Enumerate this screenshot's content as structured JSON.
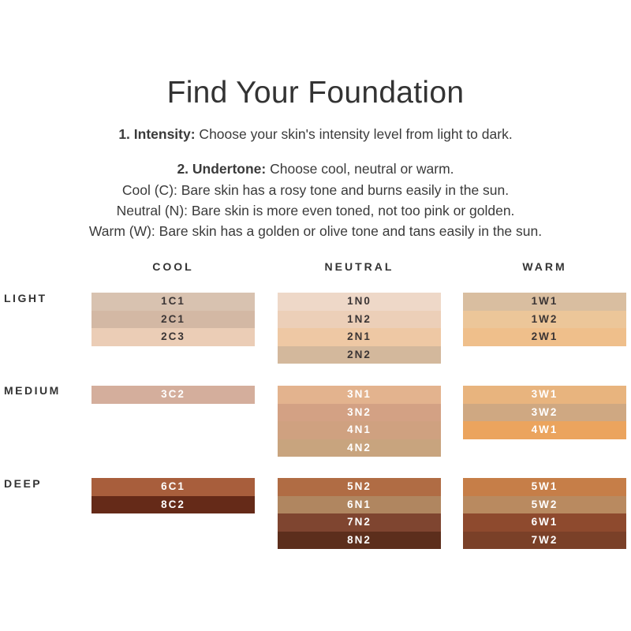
{
  "title": "Find Your Foundation",
  "step1": {
    "label": "1. Intensity:",
    "text": " Choose your skin's intensity level from light to dark."
  },
  "step2": {
    "label": "2. Undertone:",
    "text": " Choose cool, neutral or warm."
  },
  "undertones": [
    "Cool (C): Bare skin has a rosy tone and burns easily in the sun.",
    "Neutral (N): Bare skin is more even toned, not too pink or golden.",
    "Warm (W): Bare skin has a golden or olive tone and tans easily in the sun."
  ],
  "columns": [
    "COOL",
    "NEUTRAL",
    "WARM"
  ],
  "rows": [
    "LIGHT",
    "MEDIUM",
    "DEEP"
  ],
  "shades": {
    "light": {
      "cool": [
        {
          "code": "1C1",
          "color": "#d8c2b0"
        },
        {
          "code": "2C1",
          "color": "#d3b8a4"
        },
        {
          "code": "2C3",
          "color": "#ebcdb6"
        }
      ],
      "neutral": [
        {
          "code": "1N0",
          "color": "#eed8c8"
        },
        {
          "code": "1N2",
          "color": "#eccfb8"
        },
        {
          "code": "2N1",
          "color": "#eec8a4"
        },
        {
          "code": "2N2",
          "color": "#d3b89c"
        }
      ],
      "warm": [
        {
          "code": "1W1",
          "color": "#d9bea0"
        },
        {
          "code": "1W2",
          "color": "#ecc699"
        },
        {
          "code": "2W1",
          "color": "#efbf8b"
        }
      ]
    },
    "medium": {
      "cool": [
        {
          "code": "3C2",
          "color": "#d4ae9c"
        }
      ],
      "neutral": [
        {
          "code": "3N1",
          "color": "#e3b38e"
        },
        {
          "code": "3N2",
          "color": "#d3a184"
        },
        {
          "code": "4N1",
          "color": "#cfa180"
        },
        {
          "code": "4N2",
          "color": "#c8a47e"
        }
      ],
      "warm": [
        {
          "code": "3W1",
          "color": "#e8b47e"
        },
        {
          "code": "3W2",
          "color": "#cfa882"
        },
        {
          "code": "4W1",
          "color": "#eba45e"
        }
      ]
    },
    "deep": {
      "cool": [
        {
          "code": "6C1",
          "color": "#a85e3c"
        },
        {
          "code": "8C2",
          "color": "#652a18"
        }
      ],
      "neutral": [
        {
          "code": "5N2",
          "color": "#b06c44"
        },
        {
          "code": "6N1",
          "color": "#b08660"
        },
        {
          "code": "7N2",
          "color": "#7f4530"
        },
        {
          "code": "8N2",
          "color": "#5c2e1c"
        }
      ],
      "warm": [
        {
          "code": "5W1",
          "color": "#c67e48"
        },
        {
          "code": "5W2",
          "color": "#b98a60"
        },
        {
          "code": "6W1",
          "color": "#8e4a2e"
        },
        {
          "code": "7W2",
          "color": "#7a4028"
        }
      ]
    }
  }
}
